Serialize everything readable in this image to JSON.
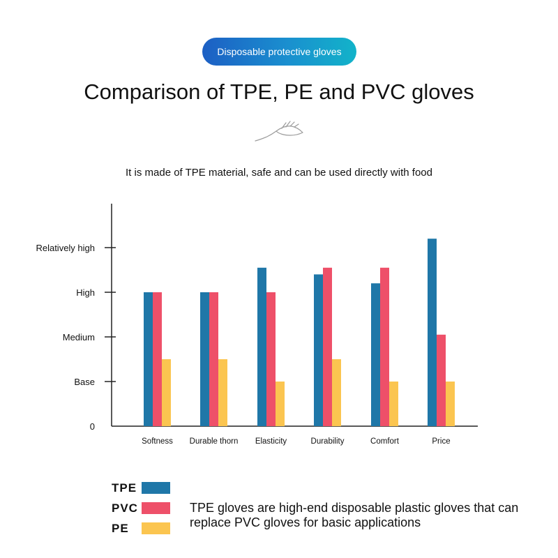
{
  "badge": {
    "label": "Disposable protective gloves"
  },
  "title": "Comparison of TPE, PE and PVC gloves",
  "subtitle": "It is made of TPE material, safe and can be used directly with food",
  "colors": {
    "TPE": "#1f77a8",
    "PVC": "#ee5069",
    "PE": "#fbc550",
    "badge_start": "#1c5fc4",
    "badge_end": "#12b3c9"
  },
  "icons": {
    "decoration": "hand-icon"
  },
  "chart_data": {
    "type": "bar",
    "title": "",
    "xlabel": "",
    "ylabel": "",
    "y_levels": [
      {
        "value": 0,
        "label": "0"
      },
      {
        "value": 1,
        "label": "Base"
      },
      {
        "value": 2,
        "label": "Medium"
      },
      {
        "value": 3,
        "label": "High"
      },
      {
        "value": 4,
        "label": "Relatively high"
      }
    ],
    "ylim": [
      0,
      4.5
    ],
    "grid": false,
    "categories": [
      "Softness",
      "Durable thorn",
      "Elasticity",
      "Durability",
      "Comfort",
      "Price"
    ],
    "series": [
      {
        "name": "TPE",
        "values": [
          3,
          3,
          3.55,
          3.4,
          3.2,
          4.2
        ]
      },
      {
        "name": "PVC",
        "values": [
          3,
          3,
          3,
          3.55,
          3.55,
          2.05
        ]
      },
      {
        "name": "PE",
        "values": [
          1.5,
          1.5,
          1,
          1.5,
          1,
          1
        ]
      }
    ],
    "legend_position": "bottom-left"
  },
  "note": "TPE gloves are high-end disposable plastic gloves that can replace PVC gloves for basic applications"
}
